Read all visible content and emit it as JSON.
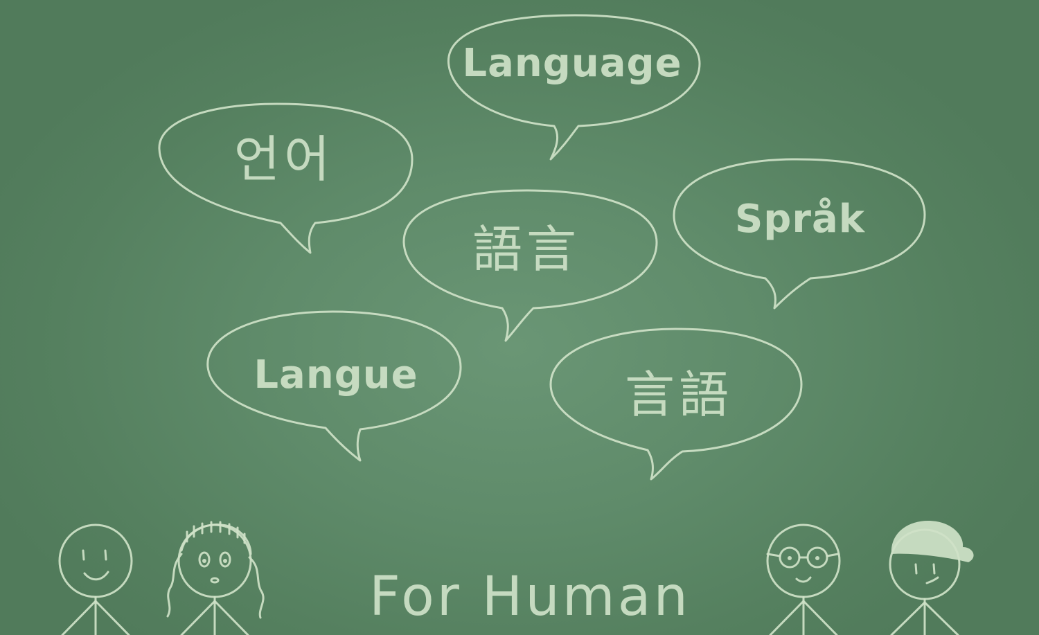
{
  "bubbles": {
    "english": "Language",
    "korean": "언어",
    "chinese": "語言",
    "swedish": "Språk",
    "french": "Langue",
    "japanese": "言語"
  },
  "caption": "For Human",
  "colors": {
    "board": "#5f8b6a",
    "chalk": "#cfe2c8"
  },
  "figures": [
    {
      "name": "smiling-person-icon"
    },
    {
      "name": "girl-with-curly-hair-icon"
    },
    {
      "name": "person-with-glasses-icon"
    },
    {
      "name": "person-with-cap-icon"
    }
  ]
}
